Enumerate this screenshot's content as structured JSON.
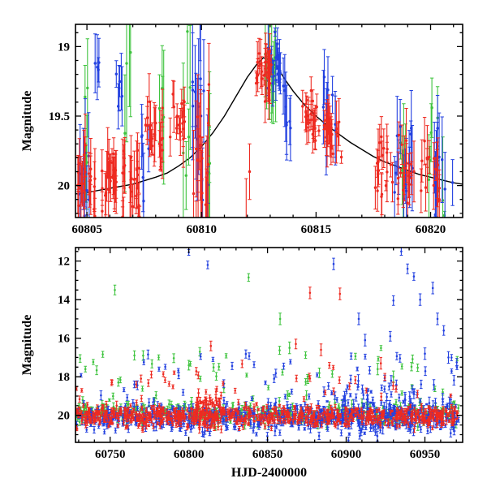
{
  "figure": {
    "title": "",
    "xlabel": "HJD-2400000",
    "ylabel": "Magnitude"
  },
  "colors": {
    "red": "#ee2a21",
    "green": "#3fc43f",
    "blue": "#2341e0",
    "model": "#000000"
  },
  "cluster_format": "[x0, x1, n, magMean, magSd, errMean, errSd]",
  "uniform_format": "[x0, x1, n, mag0, mag1, err]",
  "point_format": "[x, mag, err]",
  "chart_data": [
    {
      "id": "top",
      "type": "scatter",
      "title": "",
      "xlabel": "",
      "ylabel": "Magnitude",
      "y_inverted": true,
      "xlim": [
        60804.5,
        60821.4
      ],
      "ylim": [
        20.23,
        18.84
      ],
      "x_major_ticks": [
        60805,
        60810,
        60815,
        60820
      ],
      "x_tick_labels": [
        "60805",
        "60810",
        "60815",
        "60820"
      ],
      "x_minor_step": 1,
      "y_major_ticks": [
        19,
        19.5,
        20
      ],
      "y_tick_labels": [
        "19",
        "19.5",
        "20"
      ],
      "y_minor_step": 0.1,
      "grid": false,
      "legend": "none",
      "model_curve": {
        "name": "microlensing-model-fit",
        "points": [
          [
            60804.5,
            20.06
          ],
          [
            60805,
            20.05
          ],
          [
            60806,
            20.02
          ],
          [
            60807,
            19.99
          ],
          [
            60808,
            19.94
          ],
          [
            60808.5,
            19.91
          ],
          [
            60809,
            19.86
          ],
          [
            60809.5,
            19.8
          ],
          [
            60810,
            19.72
          ],
          [
            60810.5,
            19.62
          ],
          [
            60811,
            19.5
          ],
          [
            60811.5,
            19.36
          ],
          [
            60812,
            19.22
          ],
          [
            60812.4,
            19.13
          ],
          [
            60812.7,
            19.08
          ],
          [
            60813,
            19.1
          ],
          [
            60813.3,
            19.15
          ],
          [
            60813.7,
            19.25
          ],
          [
            60814,
            19.32
          ],
          [
            60814.5,
            19.42
          ],
          [
            60815,
            19.5
          ],
          [
            60815.5,
            19.57
          ],
          [
            60816,
            19.63
          ],
          [
            60816.5,
            19.69
          ],
          [
            60817,
            19.74
          ],
          [
            60817.5,
            19.79
          ],
          [
            60818,
            19.83
          ],
          [
            60818.5,
            19.86
          ],
          [
            60819,
            19.89
          ],
          [
            60819.5,
            19.92
          ],
          [
            60820,
            19.94
          ],
          [
            60820.5,
            19.96
          ],
          [
            60821,
            19.98
          ],
          [
            60821.4,
            19.99
          ]
        ]
      },
      "series": [
        {
          "name": "green",
          "clusters": [
            [
              60804.75,
              60805.2,
              5,
              19.6,
              0.18,
              0.25,
              0.1
            ],
            [
              60806.6,
              60806.95,
              4,
              19.55,
              0.35,
              0.5,
              0.15
            ],
            [
              60808.05,
              60808.45,
              4,
              19.5,
              0.2,
              0.3,
              0.1
            ],
            [
              60809.2,
              60809.55,
              5,
              19.55,
              0.4,
              0.5,
              0.15
            ],
            [
              60810.3,
              60810.55,
              3,
              19.6,
              0.3,
              0.45,
              0.1
            ],
            [
              60812.75,
              60813.25,
              12,
              19.2,
              0.15,
              0.25,
              0.1
            ],
            [
              60818.6,
              60819.05,
              5,
              19.8,
              0.15,
              0.25,
              0.08
            ],
            [
              60819.85,
              60820.65,
              8,
              19.82,
              0.18,
              0.28,
              0.1
            ]
          ],
          "uniform": [],
          "points": []
        },
        {
          "name": "blue",
          "clusters": [
            [
              60804.6,
              60805.1,
              8,
              20.0,
              0.18,
              0.25,
              0.08
            ],
            [
              60805.35,
              60805.6,
              4,
              19.2,
              0.08,
              0.15,
              0.05
            ],
            [
              60806.15,
              60806.55,
              6,
              19.28,
              0.12,
              0.18,
              0.06
            ],
            [
              60807.35,
              60807.8,
              5,
              19.75,
              0.18,
              0.22,
              0.07
            ],
            [
              60809.6,
              60810.3,
              16,
              19.6,
              0.45,
              0.4,
              0.15
            ],
            [
              60812.9,
              60813.45,
              20,
              19.12,
              0.1,
              0.12,
              0.05
            ],
            [
              60813.5,
              60813.95,
              7,
              19.4,
              0.18,
              0.2,
              0.07
            ],
            [
              60815.3,
              60815.85,
              9,
              19.45,
              0.15,
              0.2,
              0.07
            ],
            [
              60818.4,
              60819.2,
              14,
              19.85,
              0.15,
              0.22,
              0.08
            ],
            [
              60820.15,
              60821.1,
              12,
              19.9,
              0.2,
              0.25,
              0.08
            ]
          ],
          "uniform": [],
          "points": []
        },
        {
          "name": "red",
          "clusters": [
            [
              60804.55,
              60805.35,
              26,
              19.97,
              0.13,
              0.16,
              0.06
            ],
            [
              60805.55,
              60806.35,
              22,
              19.92,
              0.12,
              0.15,
              0.05
            ],
            [
              60806.55,
              60807.35,
              24,
              19.95,
              0.14,
              0.16,
              0.06
            ],
            [
              60807.55,
              60808.35,
              20,
              19.62,
              0.14,
              0.13,
              0.05
            ],
            [
              60808.55,
              60809.35,
              16,
              19.55,
              0.12,
              0.12,
              0.04
            ],
            [
              60809.65,
              60810.35,
              22,
              19.85,
              0.33,
              0.3,
              0.12
            ],
            [
              60812.35,
              60813.05,
              26,
              19.17,
              0.1,
              0.12,
              0.05
            ],
            [
              60814.35,
              60815.15,
              24,
              19.5,
              0.09,
              0.1,
              0.04
            ],
            [
              60815.35,
              60816.15,
              24,
              19.65,
              0.1,
              0.11,
              0.04
            ],
            [
              60817.55,
              60818.35,
              18,
              19.88,
              0.12,
              0.14,
              0.05
            ],
            [
              60818.55,
              60819.35,
              18,
              19.92,
              0.13,
              0.14,
              0.05
            ],
            [
              60819.55,
              60820.45,
              16,
              19.95,
              0.14,
              0.15,
              0.05
            ]
          ],
          "uniform": [],
          "points": [
            [
              60811.95,
              20.25,
              0.3
            ],
            [
              60812.1,
              19.9,
              0.2
            ]
          ]
        }
      ]
    },
    {
      "id": "bottom",
      "type": "scatter",
      "title": "",
      "xlabel": "HJD-2400000",
      "ylabel": "Magnitude",
      "y_inverted": true,
      "xlim": [
        60728,
        60974
      ],
      "ylim": [
        21.4,
        11.3
      ],
      "x_major_ticks": [
        60750,
        60800,
        60850,
        60900,
        60950
      ],
      "x_tick_labels": [
        "60750",
        "60800",
        "60850",
        "60900",
        "60950"
      ],
      "x_minor_step": 10,
      "y_major_ticks": [
        12,
        14,
        16,
        18,
        20
      ],
      "y_tick_labels": [
        "12",
        "14",
        "16",
        "18",
        "20"
      ],
      "y_minor_step": 0.5,
      "grid": false,
      "legend": "none",
      "model_curve": null,
      "series": [
        {
          "name": "green",
          "clusters": [
            [
              60728,
              60972,
              400,
              19.9,
              0.3,
              0.15,
              0.05
            ]
          ],
          "uniform": [
            [
              60728,
              60972,
              45,
              16.5,
              19.0,
              0.15
            ]
          ],
          "points": [
            [
              60753,
              13.5,
              0.25
            ],
            [
              60771,
              16.9,
              0.25
            ],
            [
              60800,
              17.4,
              0.25
            ],
            [
              60838,
              12.85,
              0.2
            ],
            [
              60858,
              15.0,
              0.3
            ],
            [
              60864,
              16.5,
              0.3
            ],
            [
              60883,
              17.8,
              0.25
            ],
            [
              60920,
              17.6,
              0.3
            ],
            [
              60930,
              18.0,
              0.3
            ]
          ]
        },
        {
          "name": "blue",
          "clusters": [
            [
              60728,
              60972,
              650,
              20.1,
              0.33,
              0.15,
              0.05
            ],
            [
              60880,
              60972,
              120,
              19.6,
              0.8,
              0.2,
              0.08
            ]
          ],
          "uniform": [
            [
              60728,
              60972,
              45,
              16.8,
              19.2,
              0.15
            ]
          ],
          "points": [
            [
              60800,
              11.55,
              0.15
            ],
            [
              60812,
              12.2,
              0.2
            ],
            [
              60892,
              12.15,
              0.3
            ],
            [
              60908,
              15.0,
              0.3
            ],
            [
              60912,
              16.1,
              0.3
            ],
            [
              60928,
              15.9,
              0.25
            ],
            [
              60930,
              14.05,
              0.25
            ],
            [
              60935,
              11.5,
              0.2
            ],
            [
              60939,
              12.4,
              0.25
            ],
            [
              60943,
              12.8,
              0.2
            ],
            [
              60947,
              14.0,
              0.3
            ],
            [
              60950,
              16.8,
              0.3
            ],
            [
              60955,
              13.4,
              0.3
            ],
            [
              60958,
              15.0,
              0.3
            ],
            [
              60962,
              15.6,
              0.25
            ],
            [
              60965,
              17.0,
              0.3
            ]
          ]
        },
        {
          "name": "red",
          "clusters": [
            [
              60728,
              60972,
              700,
              20.05,
              0.27,
              0.12,
              0.04
            ],
            [
              60803,
              60822,
              60,
              19.6,
              0.45,
              0.15,
              0.05
            ]
          ],
          "uniform": [
            [
              60728,
              60972,
              40,
              17.3,
              19.3,
              0.12
            ]
          ],
          "points": [
            [
              60814,
              16.4,
              0.25
            ],
            [
              60868,
              16.3,
              0.25
            ],
            [
              60877,
              13.65,
              0.3
            ],
            [
              60884,
              16.6,
              0.3
            ],
            [
              60896,
              13.7,
              0.3
            ],
            [
              60922,
              17.3,
              0.3
            ]
          ]
        }
      ]
    }
  ]
}
